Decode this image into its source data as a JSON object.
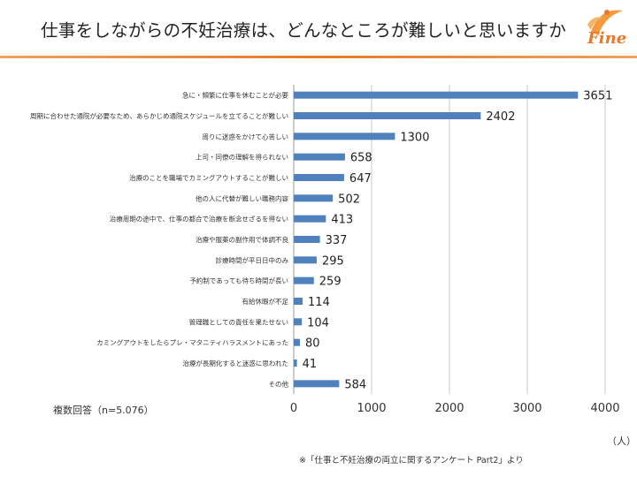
{
  "page": {
    "title": "仕事をしながらの不妊治療は、どんなところが難しいと思いますか",
    "logo_text": "Fine",
    "note": "複数回答（n=5.076）",
    "unit": "（人）",
    "source": "※「仕事と不妊治療の両立に関するアンケート Part2」より"
  },
  "colors": {
    "bar": "#4f81bd",
    "accent": "#e8782a"
  },
  "chart_data": {
    "type": "bar",
    "orientation": "horizontal",
    "categories": [
      "急に・頻繁に仕事を休むことが必要",
      "周期に合わせた通院が必要なため、あらかじめ通院スケジュールを立てることが難しい",
      "周りに迷惑をかけて心苦しい",
      "上司・同僚の理解を得られない",
      "治療のことを職場でカミングアウトすることが難しい",
      "他の人に代替が難しい職務内容",
      "治療周期の途中で、仕事の都合で治療を断念せざるを得ない",
      "治療や服薬の副作用で体調不良",
      "診療時間が平日日中のみ",
      "予約制であっても待ち時間が長い",
      "有給休暇が不足",
      "管理職としての責任を果たせない",
      "カミングアウトをしたらプレ・マタニティハラスメントにあった",
      "治療が長期化すると迷惑に思われた",
      "その他"
    ],
    "values": [
      3651,
      2402,
      1300,
      658,
      647,
      502,
      413,
      337,
      295,
      259,
      114,
      104,
      80,
      41,
      584
    ],
    "xticks": [
      "0",
      "1000",
      "2000",
      "3000",
      "4000"
    ],
    "xlim": [
      0,
      4000
    ],
    "grid": true
  }
}
